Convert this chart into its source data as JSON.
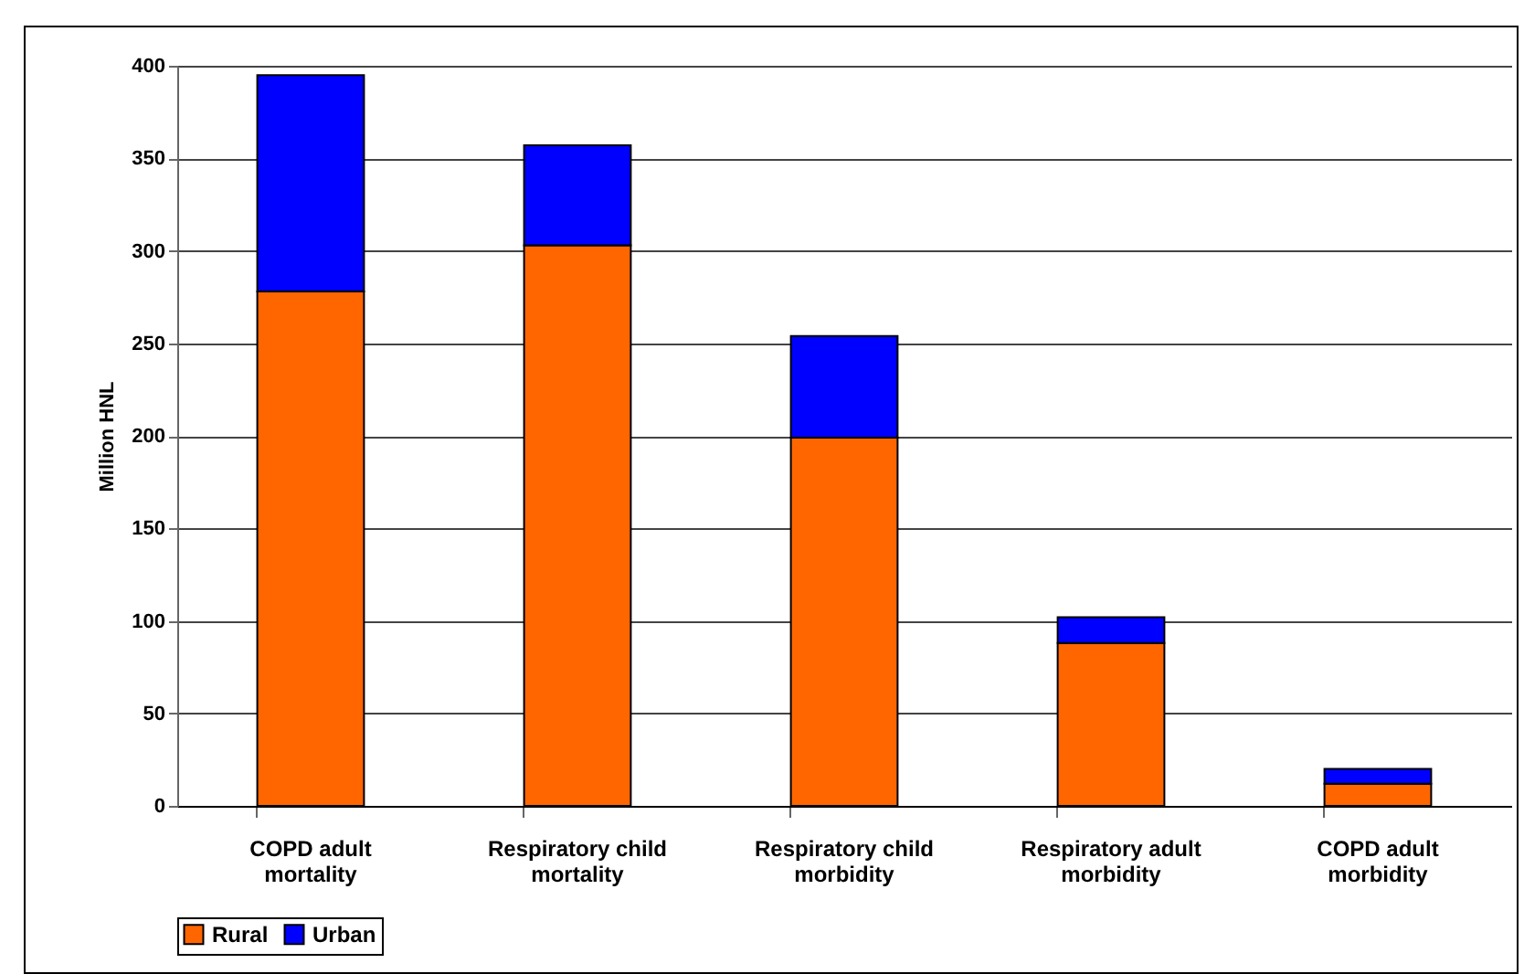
{
  "chart_data": {
    "type": "bar",
    "stacked": true,
    "ylabel": "Million HNL",
    "categories": [
      "COPD adult mortality",
      "Respiratory child mortality",
      "Respiratory child morbidity",
      "Respiratory adult morbidity",
      "COPD adult morbidity"
    ],
    "series": [
      {
        "name": "Rural",
        "color": "#ff6600",
        "values": [
          278,
          303,
          199,
          88,
          12
        ]
      },
      {
        "name": "Urban",
        "color": "#0000ff",
        "values": [
          117,
          54,
          55,
          14,
          8
        ]
      }
    ],
    "ylim": [
      0,
      400
    ],
    "yticks": [
      0,
      50,
      100,
      150,
      200,
      250,
      300,
      350,
      400
    ],
    "grid": "y",
    "legend": "bottom"
  }
}
